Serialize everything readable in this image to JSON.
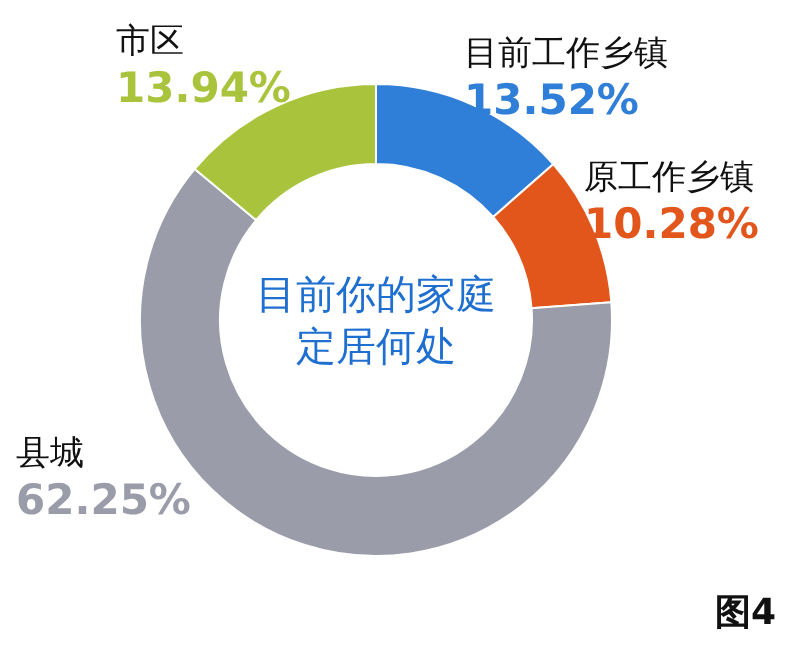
{
  "chart_data": {
    "type": "donut",
    "title": "目前你的家庭定居何处",
    "categories": [
      "目前工作乡镇",
      "原工作乡镇",
      "县城",
      "市区"
    ],
    "values": [
      13.52,
      10.28,
      62.25,
      13.94
    ],
    "value_labels": [
      "13.52%",
      "10.28%",
      "62.25%",
      "13.94%"
    ],
    "colors": [
      "#2f7fd8",
      "#e2561c",
      "#9a9caa",
      "#a9c43c"
    ],
    "annotations": [
      "图4"
    ]
  }
}
